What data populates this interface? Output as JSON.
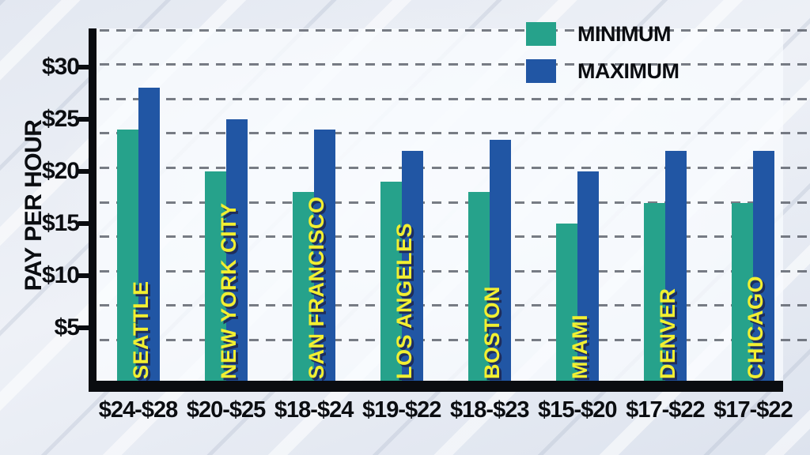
{
  "colors": {
    "min_bar": "#26A28B",
    "max_bar": "#2156A4",
    "city_label": "#F2EF31",
    "city_label_shadow": "#1E2D5C",
    "axis": "#0A0C10",
    "gridline": "#575C66",
    "text": "#0B0D11",
    "background": "#E9EDF4"
  },
  "chart_data": {
    "type": "bar",
    "title": "",
    "ylabel": "PAY PER HOUR",
    "xlabel": "",
    "grid": true,
    "legend_position": "top-right",
    "categories": [
      "SEATTLE",
      "NEW YORK CITY",
      "SAN FRANCISCO",
      "LOS ANGELES",
      "BOSTON",
      "MIAMI",
      "DENVER",
      "CHICAGO"
    ],
    "series": [
      {
        "name": "MINIMUM",
        "color": "#26A28B",
        "values": [
          24,
          20,
          18,
          19,
          18,
          15,
          17,
          17
        ]
      },
      {
        "name": "MAXIMUM",
        "color": "#2156A4",
        "values": [
          28,
          25,
          24,
          22,
          23,
          20,
          22,
          22
        ]
      }
    ],
    "range_labels": [
      "$24-$28",
      "$20-$25",
      "$18-$24",
      "$19-$22",
      "$18-$23",
      "$15-$20",
      "$17-$22",
      "$17-$22"
    ],
    "y_axis": {
      "tick_values": [
        5,
        10,
        15,
        20,
        25,
        30
      ],
      "tick_labels": [
        "$5",
        "$10",
        "$15",
        "$20",
        "$25",
        "$30"
      ],
      "ylim": [
        0,
        33.5
      ]
    }
  }
}
